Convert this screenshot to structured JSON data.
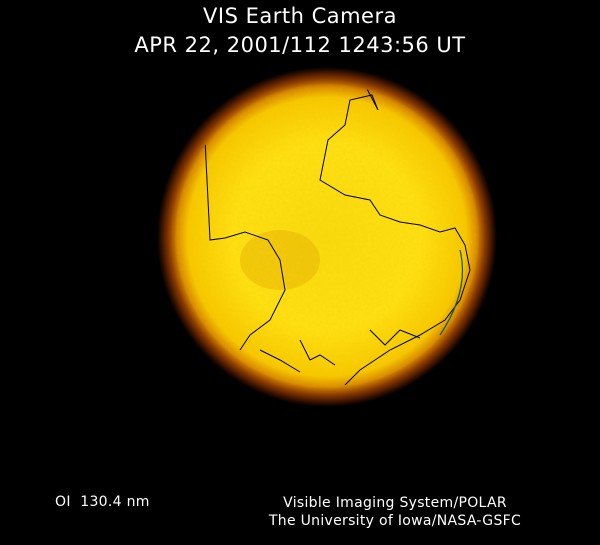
{
  "header": {
    "title": "VIS Earth Camera",
    "timestamp": "APR 22, 2001/112 1243:56 UT"
  },
  "footer": {
    "filter": "OI  130.4 nm",
    "credit_line1": "Visible Imaging System/POLAR",
    "credit_line2": "The University of Iowa/NASA-GSFC"
  },
  "colors": {
    "background": "#000000",
    "disc_core": "#ffe800",
    "disc_mid": "#f2b000",
    "limb_glow": "#8a3a00",
    "coastline": "#000000"
  }
}
